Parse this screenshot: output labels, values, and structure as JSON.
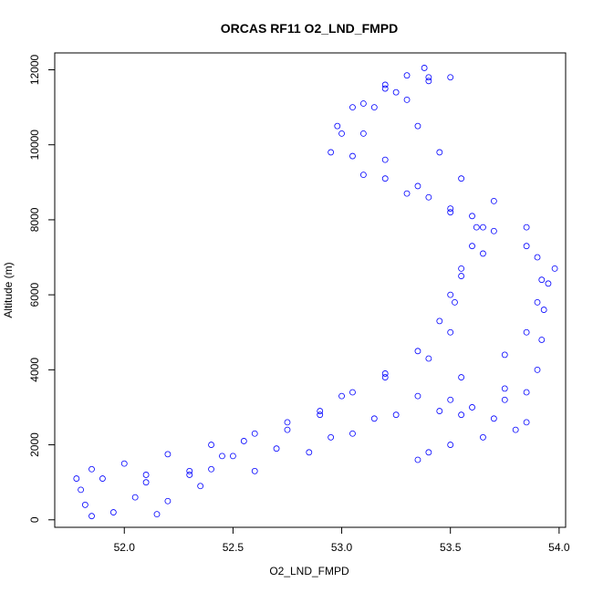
{
  "chart_data": {
    "type": "scatter",
    "title": "ORCAS RF11 O2_LND_FMPD",
    "xlabel": "O2_LND_FMPD",
    "ylabel": "Altitude (m)",
    "xlim": [
      51.68,
      54.03
    ],
    "ylim": [
      -200,
      12450
    ],
    "xticks": [
      52.0,
      52.5,
      53.0,
      53.5,
      54.0
    ],
    "xtick_labels": [
      "52.0",
      "52.5",
      "53.0",
      "53.5",
      "54.0"
    ],
    "yticks": [
      0,
      2000,
      4000,
      6000,
      8000,
      10000,
      12000
    ],
    "ytick_labels": [
      "0",
      "2000",
      "4000",
      "6000",
      "8000",
      "10000",
      "12000"
    ],
    "marker": "open-circle",
    "color": "#0000ff",
    "grid": false,
    "series": [
      {
        "points": [
          [
            51.85,
            100
          ],
          [
            51.82,
            400
          ],
          [
            51.8,
            800
          ],
          [
            51.78,
            1100
          ],
          [
            51.85,
            1350
          ],
          [
            52.0,
            1500
          ],
          [
            52.2,
            1750
          ],
          [
            52.4,
            2000
          ],
          [
            52.6,
            2300
          ],
          [
            52.75,
            2600
          ],
          [
            52.9,
            2900
          ],
          [
            53.05,
            3400
          ],
          [
            53.2,
            3900
          ],
          [
            53.35,
            4500
          ],
          [
            53.45,
            5300
          ],
          [
            53.5,
            6000
          ],
          [
            53.55,
            6700
          ],
          [
            53.6,
            7300
          ],
          [
            53.62,
            7800
          ],
          [
            53.5,
            8200
          ],
          [
            53.3,
            8700
          ],
          [
            53.1,
            9200
          ],
          [
            52.95,
            9800
          ],
          [
            52.98,
            10500
          ],
          [
            53.1,
            11100
          ],
          [
            53.2,
            11600
          ],
          [
            53.3,
            11850
          ],
          [
            53.38,
            12050
          ]
        ]
      },
      {
        "points": [
          [
            51.95,
            200
          ],
          [
            52.05,
            600
          ],
          [
            52.1,
            1000
          ],
          [
            52.3,
            1300
          ],
          [
            52.45,
            1700
          ],
          [
            52.55,
            2100
          ],
          [
            52.75,
            2400
          ],
          [
            52.9,
            2800
          ],
          [
            53.0,
            3300
          ],
          [
            53.2,
            3800
          ],
          [
            53.4,
            4300
          ],
          [
            53.5,
            5000
          ],
          [
            53.52,
            5800
          ],
          [
            53.55,
            6500
          ],
          [
            53.65,
            7100
          ],
          [
            53.7,
            7700
          ],
          [
            53.6,
            8100
          ],
          [
            53.4,
            8600
          ],
          [
            53.2,
            9100
          ],
          [
            53.05,
            9700
          ],
          [
            53.0,
            10300
          ],
          [
            53.05,
            11000
          ],
          [
            53.2,
            11500
          ],
          [
            53.4,
            11800
          ]
        ]
      },
      {
        "points": [
          [
            51.9,
            1100
          ],
          [
            52.1,
            1200
          ],
          [
            52.3,
            1200
          ],
          [
            52.4,
            1350
          ],
          [
            52.5,
            1700
          ],
          [
            52.7,
            1900
          ],
          [
            52.95,
            2200
          ],
          [
            53.15,
            2700
          ],
          [
            53.35,
            3300
          ],
          [
            53.55,
            3800
          ],
          [
            53.75,
            4400
          ],
          [
            53.85,
            5000
          ],
          [
            53.9,
            5800
          ],
          [
            53.92,
            6400
          ],
          [
            53.9,
            7000
          ],
          [
            53.85,
            7800
          ],
          [
            53.7,
            8500
          ],
          [
            53.55,
            9100
          ],
          [
            53.45,
            9800
          ],
          [
            53.35,
            10500
          ],
          [
            53.3,
            11200
          ],
          [
            53.4,
            11700
          ],
          [
            53.5,
            11800
          ]
        ]
      },
      {
        "points": [
          [
            52.15,
            150
          ],
          [
            52.2,
            500
          ],
          [
            52.35,
            900
          ],
          [
            52.6,
            1300
          ],
          [
            52.85,
            1800
          ],
          [
            53.05,
            2300
          ],
          [
            53.25,
            2800
          ],
          [
            53.5,
            3200
          ],
          [
            53.75,
            3500
          ],
          [
            53.9,
            4000
          ],
          [
            53.92,
            4800
          ],
          [
            53.93,
            5600
          ],
          [
            53.95,
            6300
          ],
          [
            53.98,
            6700
          ],
          [
            53.85,
            7300
          ],
          [
            53.65,
            7800
          ],
          [
            53.5,
            8300
          ],
          [
            53.35,
            8900
          ],
          [
            53.2,
            9600
          ],
          [
            53.1,
            10300
          ],
          [
            53.15,
            11000
          ],
          [
            53.25,
            11400
          ]
        ]
      },
      {
        "points": [
          [
            53.35,
            1600
          ],
          [
            53.4,
            1800
          ],
          [
            53.5,
            2000
          ],
          [
            53.65,
            2200
          ],
          [
            53.8,
            2400
          ],
          [
            53.85,
            2600
          ],
          [
            53.7,
            2700
          ],
          [
            53.55,
            2800
          ],
          [
            53.45,
            2900
          ],
          [
            53.6,
            3000
          ],
          [
            53.75,
            3200
          ],
          [
            53.85,
            3400
          ]
        ]
      }
    ]
  }
}
